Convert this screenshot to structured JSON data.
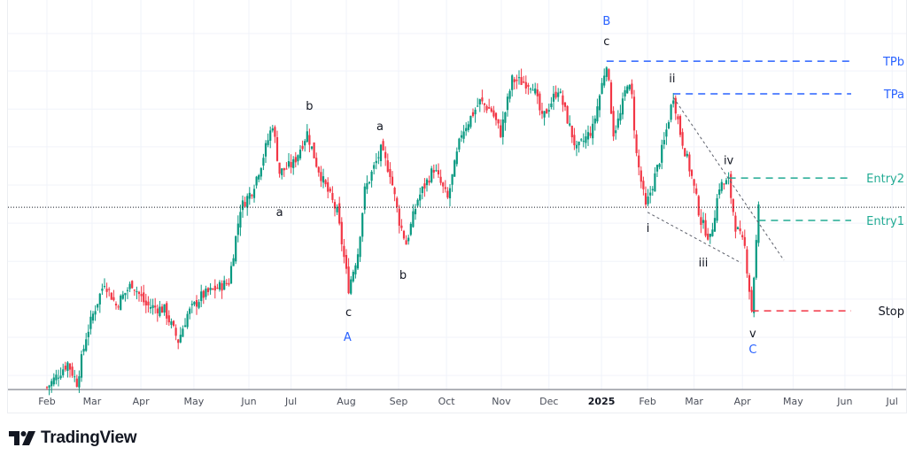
{
  "brand": {
    "name": "TradingView"
  },
  "chart_data": {
    "type": "candlestick",
    "title": "",
    "xlabel": "",
    "ylabel": "",
    "price_scale": "relative (no price axis shown)",
    "ylim": [
      0,
      100
    ],
    "xlim_trading_days": [
      -16,
      373
    ],
    "grid": true,
    "colors": {
      "up": "#089981",
      "down": "#f23645",
      "wave_major": "#2962ff",
      "wave_minor": "#131722",
      "target": "#2962ff",
      "entry": "#22ab94",
      "stop": "#f23645",
      "grid": "#f0f3fa"
    },
    "x_ticks": [
      {
        "label": "Feb",
        "t": 0
      },
      {
        "label": "Mar",
        "t": 19.6
      },
      {
        "label": "Apr",
        "t": 40.8
      },
      {
        "label": "May",
        "t": 63.8
      },
      {
        "label": "Jun",
        "t": 87.7
      },
      {
        "label": "Jul",
        "t": 106
      },
      {
        "label": "Aug",
        "t": 130
      },
      {
        "label": "Sep",
        "t": 152.7
      },
      {
        "label": "Oct",
        "t": 173.5
      },
      {
        "label": "Nov",
        "t": 197.3
      },
      {
        "label": "Dec",
        "t": 218
      },
      {
        "label": "2025",
        "t": 240.8,
        "bold": true
      },
      {
        "label": "Feb",
        "t": 260.8
      },
      {
        "label": "Mar",
        "t": 281
      },
      {
        "label": "Apr",
        "t": 302
      },
      {
        "label": "May",
        "t": 324
      },
      {
        "label": "Jun",
        "t": 346.5
      },
      {
        "label": "Jul",
        "t": 367
      }
    ],
    "y_grid": [
      3.6,
      13.4,
      23.2,
      32.9,
      42.7,
      52.5,
      62.3,
      72,
      81.8,
      91.4
    ],
    "close_path": [
      [
        0,
        0.5
      ],
      [
        9,
        6.8
      ],
      [
        13,
        1.8
      ],
      [
        17,
        13.6
      ],
      [
        20,
        19.3
      ],
      [
        25,
        27.7
      ],
      [
        30,
        21.6
      ],
      [
        37,
        27.3
      ],
      [
        43,
        21.6
      ],
      [
        51,
        20.5
      ],
      [
        57,
        12.5
      ],
      [
        61,
        19.3
      ],
      [
        67,
        23.9
      ],
      [
        74,
        26.1
      ],
      [
        79,
        27.7
      ],
      [
        81,
        35.2
      ],
      [
        84,
        46.6
      ],
      [
        89,
        51.1
      ],
      [
        93,
        58
      ],
      [
        98,
        68.2
      ],
      [
        101,
        55.7
      ],
      [
        107,
        58
      ],
      [
        113,
        65.9
      ],
      [
        117,
        58
      ],
      [
        120,
        53.4
      ],
      [
        126,
        45.5
      ],
      [
        131,
        26.1
      ],
      [
        135,
        35.2
      ],
      [
        138,
        51.1
      ],
      [
        145,
        61.4
      ],
      [
        149,
        55.7
      ],
      [
        153,
        43.2
      ],
      [
        156,
        37.5
      ],
      [
        161,
        48.9
      ],
      [
        168,
        56.8
      ],
      [
        174,
        48.9
      ],
      [
        180,
        65.9
      ],
      [
        188,
        73.9
      ],
      [
        193,
        71.6
      ],
      [
        197,
        65.9
      ],
      [
        202,
        79.5
      ],
      [
        211,
        78.4
      ],
      [
        215,
        69.3
      ],
      [
        222,
        77.3
      ],
      [
        230,
        61.4
      ],
      [
        237,
        67
      ],
      [
        241,
        78.4
      ],
      [
        243,
        84.1
      ],
      [
        246,
        65.9
      ],
      [
        249,
        70.5
      ],
      [
        252,
        79.1
      ],
      [
        254,
        75
      ],
      [
        256,
        60.2
      ],
      [
        260,
        46.6
      ],
      [
        265,
        56.8
      ],
      [
        268,
        63.6
      ],
      [
        272,
        75.5
      ],
      [
        275,
        65.9
      ],
      [
        280,
        54.5
      ],
      [
        284,
        43.2
      ],
      [
        288,
        38.6
      ],
      [
        292,
        52.3
      ],
      [
        296,
        53.4
      ],
      [
        299,
        42
      ],
      [
        303,
        36.4
      ],
      [
        306,
        20.5
      ],
      [
        309,
        46.6
      ]
    ],
    "current_price_line": 46.8,
    "levels": [
      {
        "label": "TPb",
        "price": 84.3,
        "from_t": 243,
        "kind": "target"
      },
      {
        "label": "TPa",
        "price": 75.9,
        "from_t": 272,
        "kind": "target"
      },
      {
        "label": "Entry2",
        "price": 54.3,
        "from_t": 296,
        "kind": "entry"
      },
      {
        "label": "Entry1",
        "price": 43.4,
        "from_t": 309,
        "kind": "entry"
      },
      {
        "label": "Stop",
        "price": 20.2,
        "from_t": 306,
        "kind": "stop"
      }
    ],
    "trendlines": [
      {
        "from": [
          272,
          75
        ],
        "to": [
          320,
          33.2
        ]
      },
      {
        "from": [
          260.8,
          45.5
        ],
        "to": [
          301.5,
          32.5
        ]
      }
    ],
    "wave_labels": [
      {
        "text": "B",
        "t": 243,
        "p": 94.8,
        "major": true
      },
      {
        "text": "c",
        "t": 243,
        "p": 89.5
      },
      {
        "text": "ii",
        "t": 271.5,
        "p": 80
      },
      {
        "text": "iv",
        "t": 296,
        "p": 59
      },
      {
        "text": "i",
        "t": 261,
        "p": 41.6
      },
      {
        "text": "iii",
        "t": 285,
        "p": 32.7
      },
      {
        "text": "v",
        "t": 306.5,
        "p": 14.5
      },
      {
        "text": "C",
        "t": 306.5,
        "p": 10.5,
        "major": true
      },
      {
        "text": "b",
        "t": 114,
        "p": 73
      },
      {
        "text": "a",
        "t": 144.6,
        "p": 67.7
      },
      {
        "text": "a",
        "t": 101,
        "p": 45.7
      },
      {
        "text": "c",
        "t": 131,
        "p": 20
      },
      {
        "text": "A",
        "t": 130.5,
        "p": 13.6,
        "major": true
      },
      {
        "text": "b",
        "t": 154.6,
        "p": 29.5
      }
    ]
  }
}
